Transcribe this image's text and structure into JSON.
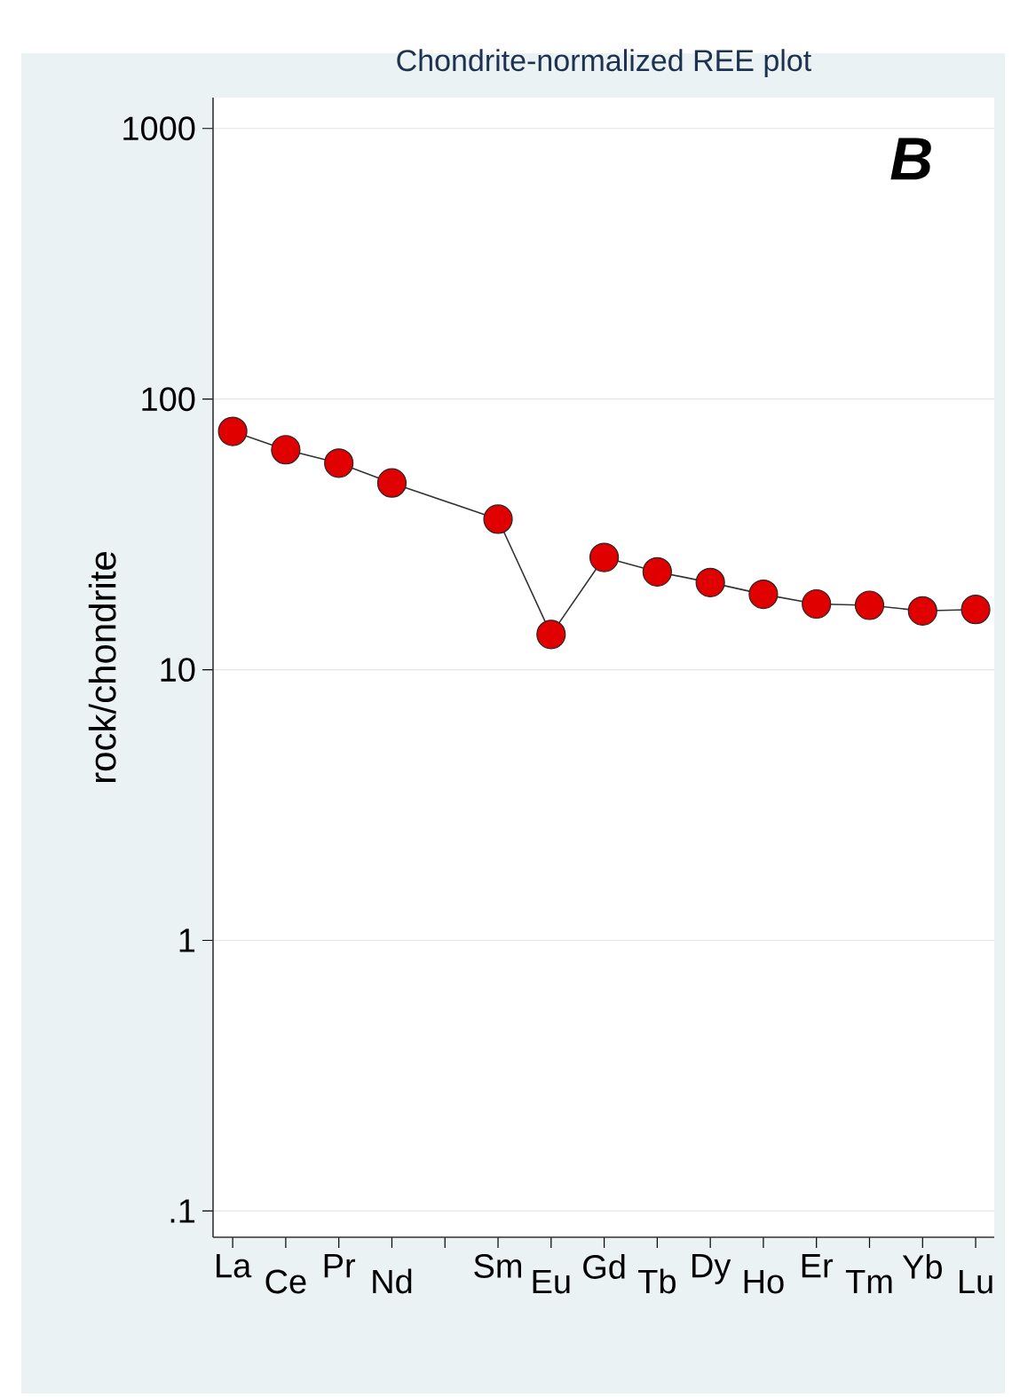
{
  "chart_data": {
    "type": "line",
    "title": "Chondrite-normalized REE plot",
    "ylabel": "rock/chondrite",
    "categories": [
      "La",
      "Ce",
      "Pr",
      "Nd",
      null,
      "Sm",
      "Eu",
      "Gd",
      "Tb",
      "Dy",
      "Ho",
      "Er",
      "Tm",
      "Yb",
      "Lu"
    ],
    "series": [
      {
        "color": "#e00000",
        "values": [
          76,
          65,
          58,
          49,
          null,
          36,
          13.5,
          26,
          23,
          21,
          19,
          17.5,
          17.3,
          16.5,
          16.7
        ]
      }
    ],
    "log": "y",
    "ylim": [
      0.08,
      1300
    ],
    "yticks": [
      {
        "value": 0.1,
        "label": ".1"
      },
      1,
      10,
      100,
      1000
    ],
    "grid": "y",
    "marker": "circle",
    "line_style": "solid",
    "annotations": [
      "B"
    ]
  }
}
